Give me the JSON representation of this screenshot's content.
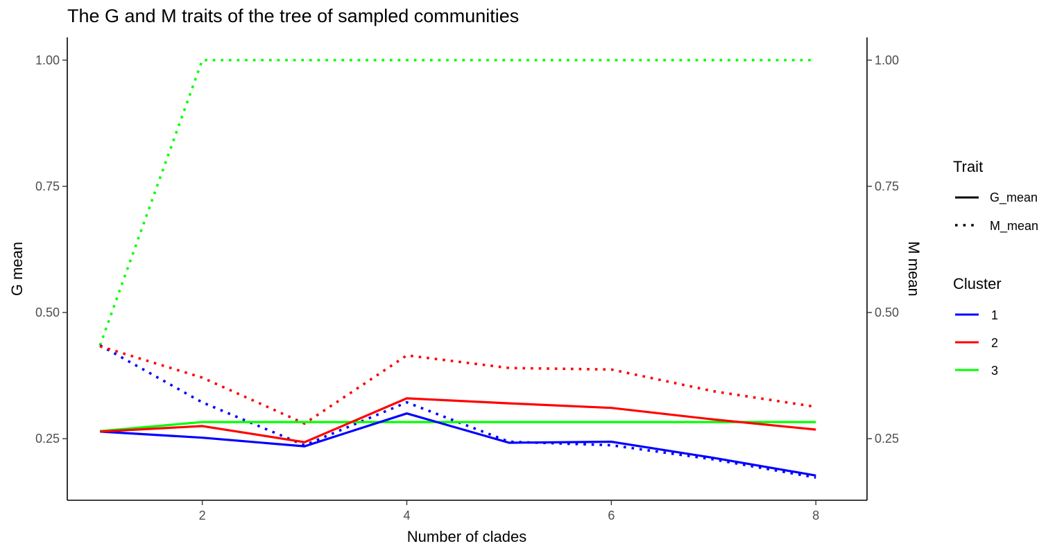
{
  "chart_data": {
    "type": "line",
    "title": "The G and M traits of the tree of sampled communities",
    "xlabel": "Number of clades",
    "ylabel": "G mean",
    "ylabel_right": "M mean",
    "xlim": [
      0.68,
      8.5
    ],
    "ylim": [
      0.128,
      1.045
    ],
    "x_ticks": [
      2,
      4,
      6,
      8
    ],
    "x_tick_labels": [
      "2",
      "4",
      "6",
      "8"
    ],
    "y_ticks": [
      0.25,
      0.5,
      0.75,
      1.0
    ],
    "y_tick_labels": [
      "0.25",
      "0.50",
      "0.75",
      "1.00"
    ],
    "grid": false,
    "legend_position": "right",
    "legends": [
      {
        "title": "Trait",
        "items": [
          {
            "label": "G_mean",
            "linestyle": "solid"
          },
          {
            "label": "M_mean",
            "linestyle": "dotted"
          }
        ]
      },
      {
        "title": "Cluster",
        "items": [
          {
            "label": "1",
            "color": "#0000ff"
          },
          {
            "label": "2",
            "color": "#ff0000"
          },
          {
            "label": "3",
            "color": "#00ff00"
          }
        ]
      }
    ],
    "x": [
      1,
      2,
      3,
      4,
      5,
      6,
      7,
      8
    ],
    "series": [
      {
        "name": "G_mean",
        "cluster": "1",
        "color": "#0000ff",
        "linestyle": "solid",
        "values": [
          0.264,
          0.252,
          0.235,
          0.3,
          0.242,
          0.244,
          0.212,
          0.177
        ]
      },
      {
        "name": "G_mean",
        "cluster": "2",
        "color": "#ff0000",
        "linestyle": "solid",
        "values": [
          0.264,
          0.275,
          0.243,
          0.33,
          0.32,
          0.311,
          0.288,
          0.268
        ]
      },
      {
        "name": "G_mean",
        "cluster": "3",
        "color": "#00ff00",
        "linestyle": "solid",
        "values": [
          0.265,
          0.283,
          0.283,
          0.283,
          0.283,
          0.283,
          0.283,
          0.283
        ]
      },
      {
        "name": "M_mean",
        "cluster": "1",
        "color": "#0000ff",
        "linestyle": "dotted",
        "values": [
          0.435,
          0.322,
          0.237,
          0.322,
          0.244,
          0.237,
          0.209,
          0.173
        ]
      },
      {
        "name": "M_mean",
        "cluster": "2",
        "color": "#ff0000",
        "linestyle": "dotted",
        "values": [
          0.433,
          0.371,
          0.28,
          0.415,
          0.39,
          0.387,
          0.344,
          0.313
        ]
      },
      {
        "name": "M_mean",
        "cluster": "3",
        "color": "#00ff00",
        "linestyle": "dotted",
        "values": [
          0.435,
          1.0,
          1.0,
          1.0,
          1.0,
          1.0,
          1.0,
          1.0
        ]
      }
    ]
  }
}
